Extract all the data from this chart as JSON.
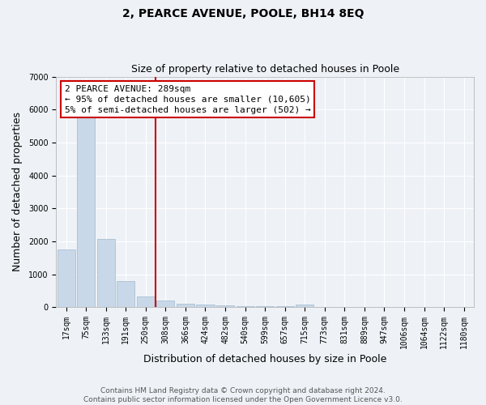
{
  "title": "2, PEARCE AVENUE, POOLE, BH14 8EQ",
  "subtitle": "Size of property relative to detached houses in Poole",
  "xlabel": "Distribution of detached houses by size in Poole",
  "ylabel": "Number of detached properties",
  "categories": [
    "17sqm",
    "75sqm",
    "133sqm",
    "191sqm",
    "250sqm",
    "308sqm",
    "366sqm",
    "424sqm",
    "482sqm",
    "540sqm",
    "599sqm",
    "657sqm",
    "715sqm",
    "773sqm",
    "831sqm",
    "889sqm",
    "947sqm",
    "1006sqm",
    "1064sqm",
    "1122sqm",
    "1180sqm"
  ],
  "values": [
    1760,
    5750,
    2060,
    780,
    330,
    200,
    108,
    80,
    60,
    40,
    30,
    20,
    70,
    0,
    0,
    0,
    0,
    0,
    0,
    0,
    0
  ],
  "bar_color": "#c8d8e8",
  "bar_edge_color": "#a0b8cc",
  "vline_x": 4.5,
  "vline_color": "#cc0000",
  "annotation_text": "2 PEARCE AVENUE: 289sqm\n← 95% of detached houses are smaller (10,605)\n5% of semi-detached houses are larger (502) →",
  "annotation_box_color": "#ffffff",
  "annotation_box_edge": "#cc0000",
  "ylim": [
    0,
    7000
  ],
  "yticks": [
    0,
    1000,
    2000,
    3000,
    4000,
    5000,
    6000,
    7000
  ],
  "footer_line1": "Contains HM Land Registry data © Crown copyright and database right 2024.",
  "footer_line2": "Contains public sector information licensed under the Open Government Licence v3.0.",
  "background_color": "#eef2f7",
  "grid_color": "#ffffff",
  "title_fontsize": 10,
  "subtitle_fontsize": 9,
  "axis_label_fontsize": 9,
  "tick_fontsize": 7,
  "annotation_fontsize": 8,
  "footer_fontsize": 6.5
}
